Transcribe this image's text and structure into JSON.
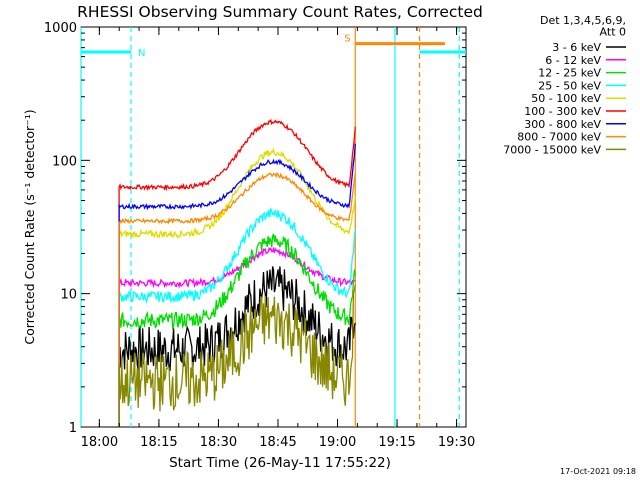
{
  "chart_data": {
    "type": "line",
    "title": "RHESSI Observing Summary Count Rates, Corrected",
    "xlabel": "Start Time (26-May-11 17:55:22)",
    "ylabel": "Corrected Count Rate (s⁻¹ detector⁻¹)",
    "x_unit": "minutes after 17:55:22",
    "xlim": [
      0,
      97
    ],
    "ylim": [
      1,
      1000
    ],
    "y_scale": "log",
    "x_ticks": [
      {
        "x": 4.63,
        "label": "18:00"
      },
      {
        "x": 19.63,
        "label": "18:15"
      },
      {
        "x": 34.63,
        "label": "18:30"
      },
      {
        "x": 49.63,
        "label": "18:45"
      },
      {
        "x": 64.63,
        "label": "19:00"
      },
      {
        "x": 79.63,
        "label": "19:15"
      },
      {
        "x": 94.63,
        "label": "19:30"
      }
    ],
    "y_ticks": [
      {
        "y": 1,
        "label": "1"
      },
      {
        "y": 10,
        "label": "10"
      },
      {
        "y": 100,
        "label": "100"
      },
      {
        "y": 1000,
        "label": "1000"
      }
    ],
    "legend_header": [
      "Det 1,3,4,5,6,9,",
      "Att 0"
    ],
    "legend_position": "outside-right",
    "series": [
      {
        "name": "3 - 6 keV",
        "color": "#000000",
        "base": 3.8,
        "peak": 11,
        "noise": 0.35
      },
      {
        "name": "6 - 12 keV",
        "color": "#ff00ff",
        "base": 12,
        "peak": 21,
        "noise": 0.05
      },
      {
        "name": "12 - 25 keV",
        "color": "#00dd00",
        "base": 6.3,
        "peak": 25,
        "noise": 0.12
      },
      {
        "name": "25 - 50 keV",
        "color": "#00ffff",
        "base": 9.5,
        "peak": 40,
        "noise": 0.08
      },
      {
        "name": "50 - 100 keV",
        "color": "#dddd00",
        "base": 28,
        "peak": 115,
        "noise": 0.05
      },
      {
        "name": "100 - 300 keV",
        "color": "#ff0000",
        "base": 63,
        "peak": 195,
        "noise": 0.03
      },
      {
        "name": "300 - 800 keV",
        "color": "#0000ff",
        "base": 45,
        "peak": 98,
        "noise": 0.03
      },
      {
        "name": "800 - 7000 keV",
        "color": "#ff8800",
        "base": 35,
        "peak": 78,
        "noise": 0.03
      },
      {
        "name": "7000 - 15000 keV",
        "color": "#888800",
        "base": 2.2,
        "peak": 6.5,
        "noise": 0.45
      }
    ],
    "data_window": {
      "start": 9.6,
      "end": 69.1,
      "peak_at": 48.5,
      "peak_width": 6.5
    },
    "data_end_values": [
      8,
      12,
      15,
      30,
      50,
      170,
      130,
      80,
      12
    ],
    "bars": [
      {
        "label": "N",
        "x0": 0,
        "x1": 12.6,
        "y": 650,
        "color": "#00ffff"
      },
      {
        "label": "",
        "x0": 85.3,
        "x1": 97,
        "y": 650,
        "color": "#00ffff"
      },
      {
        "label": "S",
        "x0": 69.1,
        "x1": 91.7,
        "y": 750,
        "color": "#ff8800"
      }
    ],
    "markers": [
      {
        "x": 0,
        "style": "solid",
        "color": "#00ffff"
      },
      {
        "x": 12.6,
        "style": "dashed",
        "color": "#00ffff"
      },
      {
        "x": 69.1,
        "style": "solid",
        "color": "#ff8800"
      },
      {
        "x": 79.1,
        "style": "solid",
        "color": "#00ffff"
      },
      {
        "x": 85.3,
        "style": "dashed",
        "color": "#ff8800"
      },
      {
        "x": 95.3,
        "style": "dashed",
        "color": "#00ffff"
      }
    ],
    "timestamp": "17-Oct-2021 09:18",
    "grid": false
  }
}
